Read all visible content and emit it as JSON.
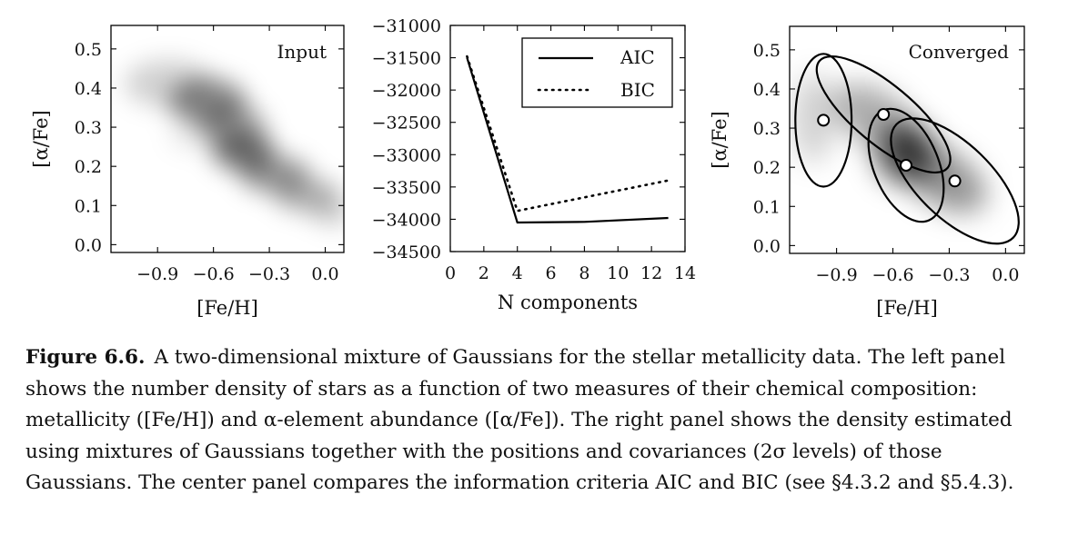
{
  "chart_data": [
    {
      "type": "heatmap",
      "panel": "left",
      "annotation": "Input",
      "xlabel": "[Fe/H]",
      "ylabel": "[α/Fe]",
      "xlim": [
        -1.15,
        0.1
      ],
      "ylim": [
        -0.02,
        0.56
      ],
      "xticks": [
        -0.9,
        -0.6,
        -0.3,
        0.0
      ],
      "xtick_labels": [
        "−0.9",
        "−0.6",
        "−0.3",
        "0.0"
      ],
      "yticks": [
        0.0,
        0.1,
        0.2,
        0.3,
        0.4,
        0.5
      ],
      "ytick_labels": [
        "0.0",
        "0.1",
        "0.2",
        "0.3",
        "0.4",
        "0.5"
      ],
      "colormap": "gray_r"
    },
    {
      "type": "line",
      "panel": "center",
      "xlabel": "N components",
      "ylabel": "",
      "xlim": [
        0,
        14
      ],
      "ylim": [
        -34500,
        -31000
      ],
      "xticks": [
        0,
        2,
        4,
        6,
        8,
        10,
        12,
        14
      ],
      "xtick_labels": [
        "0",
        "2",
        "4",
        "6",
        "8",
        "10",
        "12",
        "14"
      ],
      "yticks": [
        -31000,
        -31500,
        -32000,
        -32500,
        -33000,
        -33500,
        -34000,
        -34500
      ],
      "ytick_labels": [
        "−31000",
        "−31500",
        "−32000",
        "−32500",
        "−33000",
        "−33500",
        "−34000",
        "−34500"
      ],
      "legend_position": "top-right",
      "series": [
        {
          "name": "AIC",
          "style": "solid",
          "x": [
            1,
            4,
            8,
            13
          ],
          "y": [
            -31500,
            -34050,
            -34040,
            -33980
          ]
        },
        {
          "name": "BIC",
          "style": "dotted",
          "x": [
            1,
            4,
            13
          ],
          "y": [
            -31480,
            -33870,
            -33400
          ]
        }
      ]
    },
    {
      "type": "heatmap",
      "panel": "right",
      "annotation": "Converged",
      "xlabel": "[Fe/H]",
      "ylabel": "[α/Fe]",
      "xlim": [
        -1.15,
        0.1
      ],
      "ylim": [
        -0.02,
        0.56
      ],
      "xticks": [
        -0.9,
        -0.6,
        -0.3,
        0.0
      ],
      "xtick_labels": [
        "−0.9",
        "−0.6",
        "−0.3",
        "0.0"
      ],
      "yticks": [
        0.0,
        0.1,
        0.2,
        0.3,
        0.4,
        0.5
      ],
      "ytick_labels": [
        "0.0",
        "0.1",
        "0.2",
        "0.3",
        "0.4",
        "0.5"
      ],
      "colormap": "gray_r",
      "components": [
        {
          "mean": [
            -0.97,
            0.32
          ],
          "cov": [
            [
              0.0056,
              0
            ],
            [
              0,
              0.0072
            ]
          ]
        },
        {
          "mean": [
            -0.65,
            0.335
          ],
          "cov": [
            [
              0.0316,
              -0.0102
            ],
            [
              -0.0102,
              0.0055
            ]
          ]
        },
        {
          "mean": [
            -0.53,
            0.205
          ],
          "cov": [
            [
              0.01,
              -0.003
            ],
            [
              -0.003,
              0.0052
            ]
          ]
        },
        {
          "mean": [
            -0.27,
            0.165
          ],
          "cov": [
            [
              0.0289,
              -0.0089
            ],
            [
              -0.0089,
              0.0064
            ]
          ]
        }
      ]
    }
  ],
  "caption": {
    "label": "Figure 6.6.",
    "text": "A two-dimensional mixture of Gaussians for the stellar metallicity data. The left panel shows the number density of stars as a function of two measures of their chemical composition: metallicity ([Fe/H]) and α-element abundance ([α/Fe]). The right panel shows the density estimated using mixtures of Gaussians together with the positions and covariances (2σ levels) of those Gaussians. The center panel compares the information criteria AIC and BIC (see §4.3.2 and §5.4.3)."
  }
}
